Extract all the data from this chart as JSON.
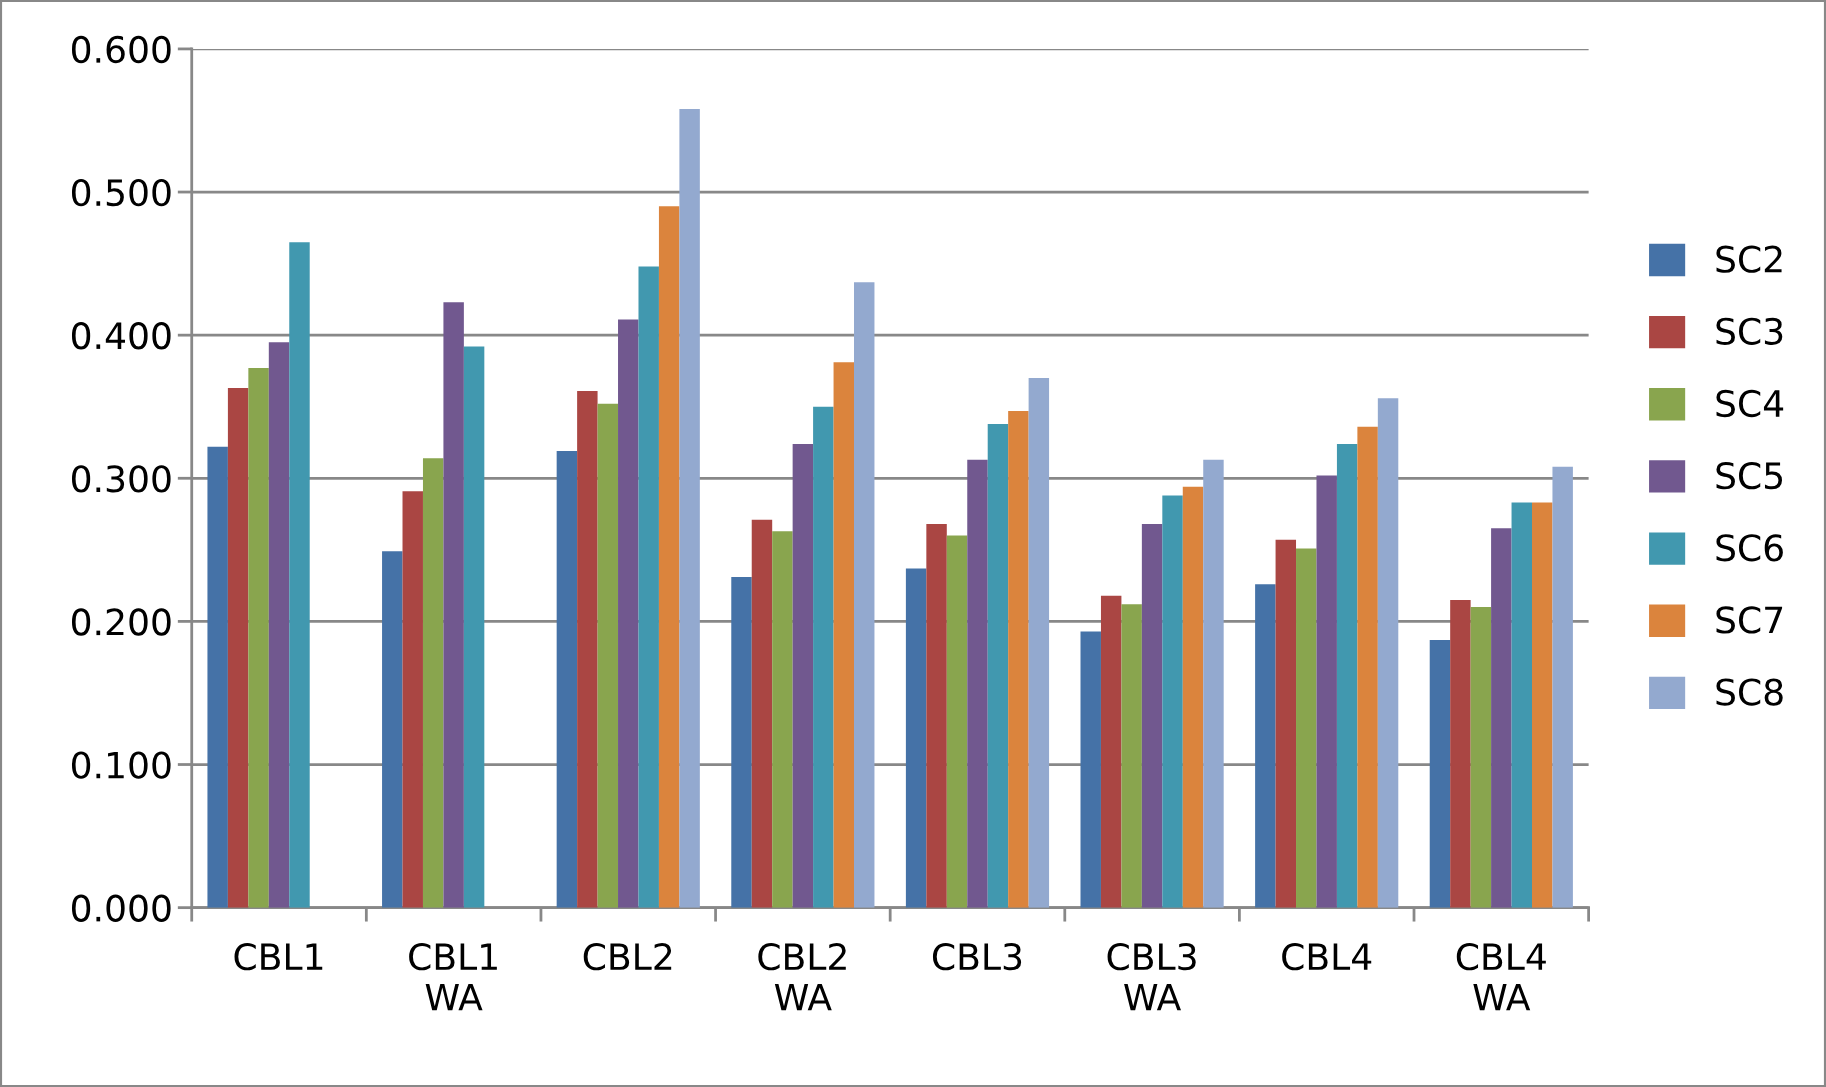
{
  "chart_data": {
    "type": "bar",
    "categories": [
      "CBL1",
      "CBL1\nWA",
      "CBL2",
      "CBL2\nWA",
      "CBL3",
      "CBL3\nWA",
      "CBL4",
      "CBL4\nWA"
    ],
    "series": [
      {
        "name": "SC2",
        "color": "#4572a7",
        "values": [
          0.322,
          0.249,
          0.319,
          0.231,
          0.237,
          0.193,
          0.226,
          0.187
        ]
      },
      {
        "name": "SC3",
        "color": "#aa4643",
        "values": [
          0.363,
          0.291,
          0.361,
          0.271,
          0.268,
          0.218,
          0.257,
          0.215
        ]
      },
      {
        "name": "SC4",
        "color": "#89a54e",
        "values": [
          0.377,
          0.314,
          0.352,
          0.263,
          0.26,
          0.212,
          0.251,
          0.21
        ]
      },
      {
        "name": "SC5",
        "color": "#71588f",
        "values": [
          0.395,
          0.423,
          0.411,
          0.324,
          0.313,
          0.268,
          0.302,
          0.265
        ]
      },
      {
        "name": "SC6",
        "color": "#4198af",
        "values": [
          0.465,
          0.392,
          0.448,
          0.35,
          0.338,
          0.288,
          0.324,
          0.283
        ]
      },
      {
        "name": "SC7",
        "color": "#db843d",
        "values": [
          null,
          null,
          0.49,
          0.381,
          0.347,
          0.294,
          0.336,
          0.283
        ]
      },
      {
        "name": "SC8",
        "color": "#93a9cf",
        "values": [
          null,
          null,
          0.558,
          0.437,
          0.37,
          0.313,
          0.356,
          0.308
        ]
      }
    ],
    "ylim": [
      0,
      0.6
    ],
    "yticks": [
      {
        "value": 0,
        "label": "0.000"
      },
      {
        "value": 0.1,
        "label": "0.100"
      },
      {
        "value": 0.2,
        "label": "0.200"
      },
      {
        "value": 0.3,
        "label": "0.300"
      },
      {
        "value": 0.4,
        "label": "0.400"
      },
      {
        "value": 0.5,
        "label": "0.500"
      },
      {
        "value": 0.6,
        "label": "0.600"
      }
    ],
    "grid": "y",
    "legend": "right"
  }
}
